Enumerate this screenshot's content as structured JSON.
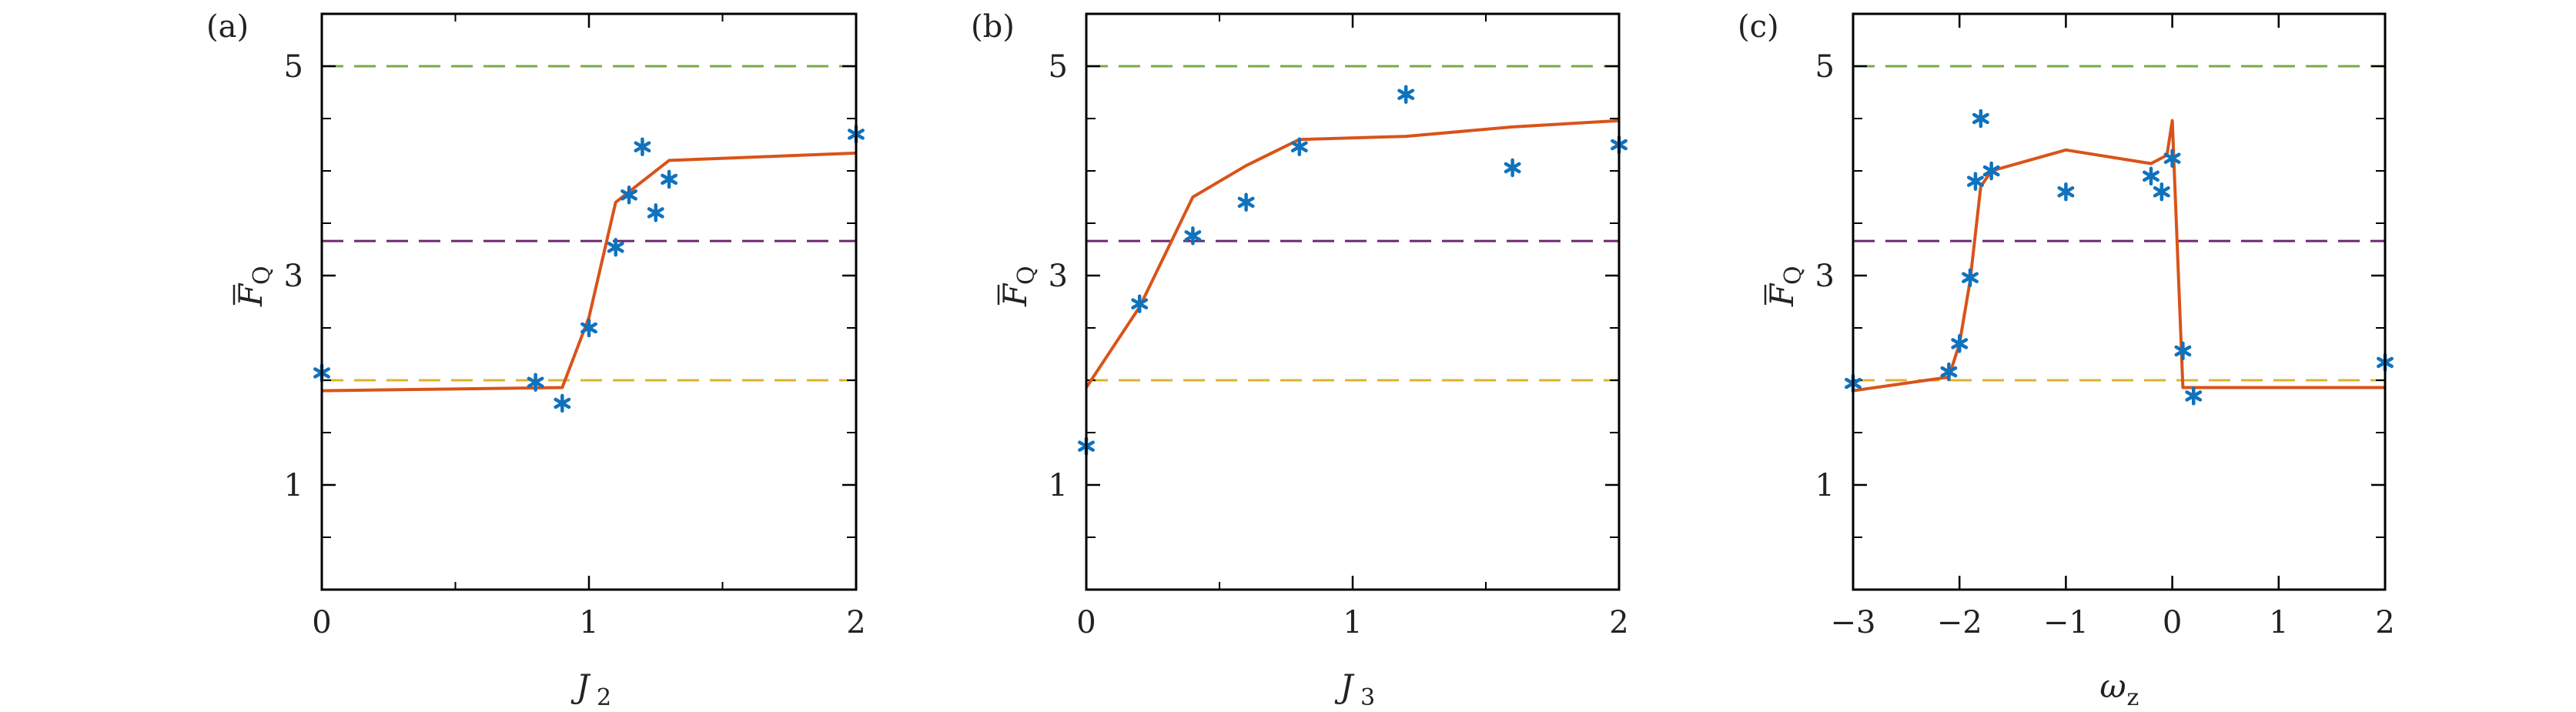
{
  "chart_data": [
    {
      "type": "line",
      "panel_label": "(a)",
      "xlabel": "J",
      "xlabel_sub": "2",
      "ylabel": "F",
      "ylabel_sub": "Q",
      "xlim": [
        0,
        2
      ],
      "ylim": [
        0,
        5.5
      ],
      "xticks": [
        0,
        1,
        2
      ],
      "xtick_labels": [
        "0",
        "1",
        "2"
      ],
      "xminor": [
        0.5,
        1.5
      ],
      "yticks": [
        1,
        3,
        5
      ],
      "ytick_labels": [
        "1",
        "3",
        "5"
      ],
      "yminor": [
        0.5,
        1.5,
        2,
        2.5,
        3.5,
        4,
        4.5
      ],
      "grid": false,
      "reference_lines": [
        {
          "y": 5,
          "color": "#7aa84a"
        },
        {
          "y": 3.33,
          "color": "#6a2a6e"
        },
        {
          "y": 2,
          "color": "#e0b030"
        }
      ],
      "series": [
        {
          "type": "line",
          "color": "#d95319",
          "x": [
            0,
            0.9,
            1.0,
            1.1,
            1.2,
            1.3,
            2.0
          ],
          "y": [
            1.9,
            1.93,
            2.6,
            3.7,
            3.9,
            4.1,
            4.17
          ]
        },
        {
          "type": "scatter",
          "color": "#0f72bd",
          "x": [
            0,
            0.8,
            0.9,
            1.0,
            1.1,
            1.15,
            1.2,
            1.25,
            1.3,
            2.0
          ],
          "y": [
            2.07,
            1.98,
            1.78,
            2.5,
            3.27,
            3.77,
            4.23,
            3.6,
            3.92,
            4.35
          ]
        }
      ]
    },
    {
      "type": "line",
      "panel_label": "(b)",
      "xlabel": "J",
      "xlabel_sub": "3",
      "ylabel": "F",
      "ylabel_sub": "Q",
      "xlim": [
        0,
        2
      ],
      "ylim": [
        0,
        5.5
      ],
      "xticks": [
        0,
        1,
        2
      ],
      "xtick_labels": [
        "0",
        "1",
        "2"
      ],
      "xminor": [
        0.5,
        1.5
      ],
      "yticks": [
        1,
        3,
        5
      ],
      "ytick_labels": [
        "1",
        "3",
        "5"
      ],
      "yminor": [
        0.5,
        1.5,
        2,
        2.5,
        3.5,
        4,
        4.5
      ],
      "grid": false,
      "reference_lines": [
        {
          "y": 5,
          "color": "#7aa84a"
        },
        {
          "y": 3.33,
          "color": "#6a2a6e"
        },
        {
          "y": 2,
          "color": "#e0b030"
        }
      ],
      "series": [
        {
          "type": "line",
          "color": "#d95319",
          "x": [
            0,
            0.2,
            0.4,
            0.6,
            0.8,
            1.2,
            1.6,
            2.0
          ],
          "y": [
            1.93,
            2.7,
            3.75,
            4.05,
            4.3,
            4.33,
            4.42,
            4.48
          ]
        },
        {
          "type": "scatter",
          "color": "#0f72bd",
          "x": [
            0,
            0.2,
            0.4,
            0.6,
            0.8,
            1.2,
            1.6,
            2.0
          ],
          "y": [
            1.37,
            2.73,
            3.38,
            3.7,
            4.23,
            4.73,
            4.03,
            4.25
          ]
        }
      ]
    },
    {
      "type": "line",
      "panel_label": "(c)",
      "xlabel": "ω",
      "xlabel_sub": "z",
      "ylabel": "F",
      "ylabel_sub": "Q",
      "xlim": [
        -3,
        2
      ],
      "ylim": [
        0,
        5.5
      ],
      "xticks": [
        -3,
        -2,
        -1,
        0,
        1,
        2
      ],
      "xtick_labels": [
        "−3",
        "−2",
        "−1",
        "0",
        "1",
        "2"
      ],
      "xminor": [],
      "yticks": [
        1,
        3,
        5
      ],
      "ytick_labels": [
        "1",
        "3",
        "5"
      ],
      "yminor": [
        0.5,
        1.5,
        2,
        2.5,
        3.5,
        4,
        4.5
      ],
      "grid": false,
      "reference_lines": [
        {
          "y": 5,
          "color": "#7aa84a"
        },
        {
          "y": 3.33,
          "color": "#6a2a6e"
        },
        {
          "y": 2,
          "color": "#e0b030"
        }
      ],
      "series": [
        {
          "type": "line",
          "color": "#d95319",
          "x": [
            -3,
            -2.1,
            -2.0,
            -1.9,
            -1.8,
            -1.7,
            -1.0,
            -0.2,
            -0.05,
            0.0,
            0.1,
            2.0
          ],
          "y": [
            1.9,
            2.03,
            2.35,
            2.95,
            3.85,
            4.0,
            4.2,
            4.07,
            4.15,
            4.48,
            1.93,
            1.93
          ]
        },
        {
          "type": "scatter",
          "color": "#0f72bd",
          "x": [
            -3,
            -2.1,
            -2.0,
            -1.9,
            -1.85,
            -1.8,
            -1.7,
            -1.0,
            -0.2,
            -0.1,
            0.0,
            0.1,
            0.2,
            2.0
          ],
          "y": [
            1.97,
            2.08,
            2.35,
            2.98,
            3.9,
            4.5,
            4.0,
            3.8,
            3.95,
            3.8,
            4.12,
            2.28,
            1.85,
            2.17
          ]
        }
      ]
    }
  ]
}
